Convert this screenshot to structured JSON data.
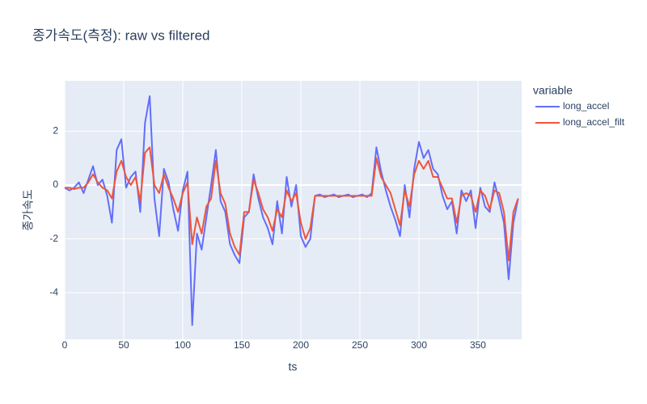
{
  "chart_data": {
    "type": "line",
    "title": "종가속도(측정): raw vs filtered",
    "x_label": "ts",
    "y_label": "종가속도",
    "legend_title": "variable",
    "x": [
      0,
      4,
      8,
      12,
      16,
      20,
      24,
      28,
      32,
      36,
      40,
      44,
      48,
      52,
      56,
      60,
      64,
      68,
      72,
      76,
      80,
      84,
      88,
      92,
      96,
      100,
      104,
      108,
      112,
      116,
      120,
      124,
      128,
      132,
      136,
      140,
      144,
      148,
      152,
      156,
      160,
      164,
      168,
      172,
      176,
      180,
      184,
      188,
      192,
      196,
      200,
      204,
      208,
      212,
      216,
      220,
      224,
      228,
      232,
      236,
      240,
      244,
      248,
      252,
      256,
      260,
      264,
      268,
      272,
      276,
      280,
      284,
      288,
      292,
      296,
      300,
      304,
      308,
      312,
      316,
      320,
      324,
      328,
      332,
      336,
      340,
      344,
      348,
      352,
      356,
      360,
      364,
      368,
      372,
      376,
      380,
      384
    ],
    "series": [
      {
        "name": "long_accel",
        "color": "#636efa",
        "values": [
          -0.1,
          -0.2,
          -0.1,
          0.1,
          -0.3,
          0.2,
          0.7,
          0.0,
          0.2,
          -0.4,
          -1.4,
          1.3,
          1.7,
          -0.1,
          0.3,
          0.5,
          -1.0,
          2.3,
          3.3,
          -0.5,
          -1.9,
          0.6,
          0.1,
          -0.9,
          -1.7,
          -0.2,
          0.5,
          -5.2,
          -1.8,
          -2.4,
          -1.2,
          0.0,
          1.3,
          -0.6,
          -1.0,
          -2.2,
          -2.6,
          -2.9,
          -1.2,
          -1.0,
          0.4,
          -0.5,
          -1.2,
          -1.6,
          -2.2,
          -0.6,
          -1.8,
          0.3,
          -0.8,
          0.0,
          -1.9,
          -2.3,
          -2.0,
          -0.4,
          -0.35,
          -0.45,
          -0.4,
          -0.35,
          -0.45,
          -0.4,
          -0.35,
          -0.45,
          -0.4,
          -0.35,
          -0.45,
          -0.3,
          1.4,
          0.5,
          -0.2,
          -0.8,
          -1.3,
          -1.9,
          0.0,
          -1.2,
          0.6,
          1.6,
          1.0,
          1.3,
          0.6,
          0.4,
          -0.4,
          -0.9,
          -0.6,
          -1.8,
          -0.2,
          -0.6,
          -0.2,
          -1.6,
          -0.1,
          -0.8,
          -1.0,
          0.1,
          -0.6,
          -1.4,
          -3.5,
          -1.4,
          -0.5
        ]
      },
      {
        "name": "long_accel_filt",
        "color": "#ef553b",
        "values": [
          -0.1,
          -0.1,
          -0.15,
          -0.1,
          -0.1,
          0.1,
          0.4,
          0.1,
          -0.1,
          -0.2,
          -0.5,
          0.5,
          0.9,
          0.3,
          0.0,
          0.3,
          -0.6,
          1.2,
          1.4,
          0.0,
          -0.3,
          0.4,
          -0.1,
          -0.5,
          -1.0,
          -0.3,
          0.1,
          -2.2,
          -1.2,
          -1.8,
          -0.8,
          -0.5,
          0.9,
          -0.3,
          -0.7,
          -1.8,
          -2.3,
          -2.6,
          -1.0,
          -1.0,
          0.2,
          -0.3,
          -0.9,
          -1.2,
          -1.7,
          -0.9,
          -1.2,
          -0.2,
          -0.6,
          -0.3,
          -1.4,
          -2.0,
          -1.6,
          -0.4,
          -0.4,
          -0.4,
          -0.4,
          -0.4,
          -0.4,
          -0.4,
          -0.4,
          -0.4,
          -0.4,
          -0.4,
          -0.4,
          -0.4,
          1.0,
          0.3,
          0.0,
          -0.3,
          -0.9,
          -1.5,
          -0.2,
          -0.8,
          0.4,
          0.9,
          0.6,
          0.9,
          0.3,
          0.3,
          -0.1,
          -0.5,
          -0.5,
          -1.4,
          -0.4,
          -0.3,
          -0.4,
          -1.0,
          -0.2,
          -0.4,
          -0.9,
          -0.2,
          -0.3,
          -1.0,
          -2.8,
          -1.0,
          -0.5
        ]
      }
    ],
    "xlim": [
      0,
      387
    ],
    "ylim": [
      -5.73,
      3.87
    ],
    "xticks": [
      0,
      50,
      100,
      150,
      200,
      250,
      300,
      350
    ],
    "yticks": [
      -4,
      -2,
      0,
      2
    ],
    "grid": true,
    "legend": "right"
  }
}
